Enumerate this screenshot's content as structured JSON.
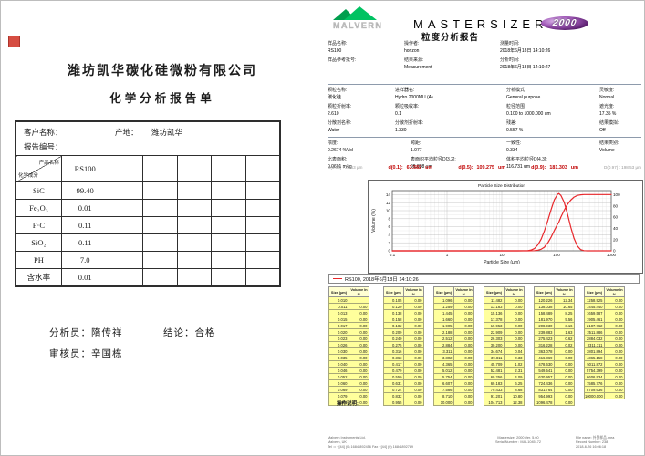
{
  "left_page": {
    "company": "潍坊凯华碳化硅微粉有限公司",
    "doc_title": "化学分析报告单",
    "table": {
      "customer_label": "客户名称：",
      "report_no_label": "报告编号：",
      "origin_label": "产地：",
      "origin_value": "潍坊凯华",
      "diag_top": "产品名称",
      "diag_bottom": "化学成分",
      "product_code": "RS100",
      "rows": [
        {
          "name": "SiC",
          "value": "99.40"
        },
        {
          "name": "Fe₂O₃",
          "value": "0.01"
        },
        {
          "name": "F·C",
          "value": "0.11"
        },
        {
          "name": "SiO₂",
          "value": "0.11"
        },
        {
          "name": "PH",
          "value": "7.0"
        },
        {
          "name": "含水率",
          "value": "0.01"
        }
      ]
    },
    "analyst_label": "分析员：",
    "analyst": "隋传祥",
    "conclusion_label": "结论：",
    "conclusion": "合格",
    "reviewer_label": "审核员：",
    "reviewer": "辛国栋"
  },
  "report": {
    "logo_text": "MALVERN",
    "brand": "MASTERSIZER",
    "brand_badge": "2000",
    "title": "粒度分析报告",
    "info1": {
      "sample_name": {
        "label": "样品名称:",
        "value": "RS100"
      },
      "sample_ref": {
        "label": "样品参考批号:",
        "value": ""
      },
      "operator": {
        "label": "操作者:",
        "value": "horizon"
      },
      "result_source": {
        "label": "结果来源:",
        "value": "Measurement"
      },
      "measured_time": {
        "label": "测量时间:",
        "value": "2018年6月18日 14:10:26"
      },
      "analysed_time": {
        "label": "分析时间:",
        "value": "2018年6月18日 14:10:27"
      }
    },
    "info2": {
      "particle_name": {
        "label": "颗粒名称:",
        "value": "碳化硅"
      },
      "particle_ri": {
        "label": "颗粒折射率:",
        "value": "2.610"
      },
      "dispersant": {
        "label": "分散剂名称:",
        "value": "Water"
      },
      "accessory": {
        "label": "进样器名:",
        "value": "Hydro 2000MU (A)"
      },
      "absorption": {
        "label": "颗粒吸收率:",
        "value": "0.1"
      },
      "dispersant_ri": {
        "label": "分散剂折射率:",
        "value": "1.330"
      },
      "analysis_model": {
        "label": "分析模式:",
        "value": "General purpose"
      },
      "size_range": {
        "label": "粒径范围:",
        "value": "0.100   to   1000.000   um"
      },
      "residual": {
        "label": "残差:",
        "value": "0.557    %"
      },
      "sensitivity": {
        "label": "灵敏度:",
        "value": "Normal"
      },
      "obscuration": {
        "label": "遮光度:",
        "value": "17.35    %"
      },
      "emulation": {
        "label": "结果模拟:",
        "value": "Off"
      }
    },
    "info3": {
      "concentration": {
        "label": "浓度:",
        "value": "0.2674    %Vol"
      },
      "ssa": {
        "label": "比表面积:",
        "value": "0.0601    m²/g"
      },
      "span": {
        "label": "跨距:",
        "value": "1.077"
      },
      "d32": {
        "label": "表面积平均粒径D[3,2]:",
        "value": "99.808    um"
      },
      "uniformity": {
        "label": "一致性:",
        "value": "0.334"
      },
      "d43": {
        "label": "体积平均粒径D[4,3]:",
        "value": "116.731    um"
      },
      "result_units": {
        "label": "结果类别:",
        "value": "Volume"
      }
    },
    "dvalues": {
      "low": "D(0.03) : 30.63 μm",
      "d10_label": "d(0.1):",
      "d10": "63.582",
      "d10_unit": "um",
      "d50_label": "d(0.5):",
      "d50": "109.275",
      "d50_unit": "um",
      "d90_label": "d(0.9):",
      "d90": "181.303",
      "d90_unit": "um",
      "high": "D(0.97) : 198.53 μm"
    },
    "ops_label": "操作说明:",
    "footer": {
      "col1": [
        "Malvern Instruments Ltd.",
        "Malvern, UK",
        "Tel := +[44] (0) 1684-892456 Fax +[44] (0) 1684-892789"
      ],
      "col2": [
        "Mastersizer 2000 Ver. 5.60",
        "Serial Number : MAL1045172"
      ],
      "col3": [
        "File name: 外贸样品.mea",
        "Record Number: 238",
        "2018-6-26 16:06:18"
      ]
    }
  },
  "chart_data": {
    "type": "line",
    "title": "Particle Size Distribution",
    "xlabel": "Particle Size (µm)",
    "ylabel_left": "Volume (%)",
    "x_scale": "log",
    "xlim": [
      0.1,
      1000
    ],
    "ylim_left": [
      0,
      15
    ],
    "ylim_right": [
      0,
      107
    ],
    "x_ticks": [
      "0.1",
      "1",
      "10",
      "100",
      "1000"
    ],
    "y_ticks_left": [
      0,
      2,
      4,
      6,
      8,
      10,
      12,
      14
    ],
    "y_ticks_right": [
      0,
      20,
      40,
      60,
      80,
      100
    ],
    "grid": true,
    "legend_text": "RS100, 2018年6月18日 14:10:26",
    "series": [
      {
        "name": "volume-frequency",
        "axis": "left",
        "color": "#e8262a",
        "points": [
          [
            0.1,
            0
          ],
          [
            20,
            0
          ],
          [
            30,
            0.05
          ],
          [
            34.7,
            0.2
          ],
          [
            39.8,
            0.6
          ],
          [
            45.7,
            1.5
          ],
          [
            52.5,
            2.9
          ],
          [
            60.3,
            5.0
          ],
          [
            69.2,
            7.5
          ],
          [
            79.4,
            10.2
          ],
          [
            91.2,
            12.7
          ],
          [
            104.7,
            14.1
          ],
          [
            110,
            14.3
          ],
          [
            120.2,
            13.8
          ],
          [
            138,
            12.1
          ],
          [
            158.5,
            9.2
          ],
          [
            182,
            5.9
          ],
          [
            208.9,
            3.1
          ],
          [
            239.9,
            1.2
          ],
          [
            275.4,
            0.3
          ],
          [
            316.2,
            0.04
          ],
          [
            363,
            0
          ],
          [
            1000,
            0
          ]
        ]
      },
      {
        "name": "cumulative-undersize",
        "axis": "right",
        "color": "#e8262a",
        "points": [
          [
            0.1,
            0
          ],
          [
            30,
            0
          ],
          [
            39.8,
            0.4
          ],
          [
            45.7,
            1.1
          ],
          [
            52.5,
            2.8
          ],
          [
            60.3,
            6.5
          ],
          [
            63.6,
            10
          ],
          [
            69.2,
            14
          ],
          [
            79.4,
            24
          ],
          [
            91.2,
            36
          ],
          [
            104.7,
            47.5
          ],
          [
            109.3,
            50
          ],
          [
            120.2,
            60
          ],
          [
            138,
            72
          ],
          [
            158.5,
            82.5
          ],
          [
            181.3,
            90
          ],
          [
            208.9,
            95.5
          ],
          [
            239.9,
            98.4
          ],
          [
            275.4,
            99.6
          ],
          [
            316.2,
            99.95
          ],
          [
            400,
            100
          ],
          [
            1000,
            100
          ]
        ]
      }
    ]
  },
  "size_table": {
    "header_size": "Size (µm)",
    "header_vol": "Volume In %",
    "columns": [
      {
        "rows": [
          [
            "0.010",
            ""
          ],
          [
            "0.011",
            "0.00"
          ],
          [
            "0.013",
            "0.00"
          ],
          [
            "0.015",
            "0.00"
          ],
          [
            "0.017",
            "0.00"
          ],
          [
            "0.020",
            "0.00"
          ],
          [
            "0.023",
            "0.00"
          ],
          [
            "0.026",
            "0.00"
          ],
          [
            "0.030",
            "0.00"
          ],
          [
            "0.035",
            "0.00"
          ],
          [
            "0.040",
            "0.00"
          ],
          [
            "0.046",
            "0.00"
          ],
          [
            "0.052",
            "0.00"
          ],
          [
            "0.060",
            "0.00"
          ],
          [
            "0.069",
            "0.00"
          ],
          [
            "0.079",
            "0.00"
          ],
          [
            "0.091",
            "0.00"
          ]
        ]
      },
      {
        "rows": [
          [
            "0.105",
            "0.00"
          ],
          [
            "0.120",
            "0.00"
          ],
          [
            "0.138",
            "0.00"
          ],
          [
            "0.158",
            "0.00"
          ],
          [
            "0.182",
            "0.00"
          ],
          [
            "0.209",
            "0.00"
          ],
          [
            "0.240",
            "0.00"
          ],
          [
            "0.275",
            "0.00"
          ],
          [
            "0.316",
            "0.00"
          ],
          [
            "0.363",
            "0.00"
          ],
          [
            "0.417",
            "0.00"
          ],
          [
            "0.479",
            "0.00"
          ],
          [
            "0.550",
            "0.00"
          ],
          [
            "0.631",
            "0.00"
          ],
          [
            "0.724",
            "0.00"
          ],
          [
            "0.832",
            "0.00"
          ],
          [
            "0.955",
            "0.00"
          ]
        ]
      },
      {
        "rows": [
          [
            "1.096",
            "0.00"
          ],
          [
            "1.259",
            "0.00"
          ],
          [
            "1.445",
            "0.00"
          ],
          [
            "1.660",
            "0.00"
          ],
          [
            "1.905",
            "0.00"
          ],
          [
            "2.188",
            "0.00"
          ],
          [
            "2.512",
            "0.00"
          ],
          [
            "2.884",
            "0.00"
          ],
          [
            "3.311",
            "0.00"
          ],
          [
            "3.802",
            "0.00"
          ],
          [
            "4.365",
            "0.00"
          ],
          [
            "5.012",
            "0.00"
          ],
          [
            "5.754",
            "0.00"
          ],
          [
            "6.607",
            "0.00"
          ],
          [
            "7.586",
            "0.00"
          ],
          [
            "8.710",
            "0.00"
          ],
          [
            "10.000",
            "0.00"
          ]
        ]
      },
      {
        "rows": [
          [
            "11.482",
            "0.00"
          ],
          [
            "13.183",
            "0.00"
          ],
          [
            "15.136",
            "0.00"
          ],
          [
            "17.378",
            "0.00"
          ],
          [
            "19.953",
            "0.00"
          ],
          [
            "22.909",
            "0.00"
          ],
          [
            "26.303",
            "0.00"
          ],
          [
            "30.200",
            "0.00"
          ],
          [
            "34.674",
            "0.04"
          ],
          [
            "39.811",
            "0.33"
          ],
          [
            "45.709",
            "1.02"
          ],
          [
            "52.481",
            "2.31"
          ],
          [
            "60.256",
            "4.09"
          ],
          [
            "69.183",
            "6.25"
          ],
          [
            "79.433",
            "8.68"
          ],
          [
            "91.201",
            "10.80"
          ],
          [
            "104.713",
            "12.38"
          ]
        ]
      },
      {
        "rows": [
          [
            "120.226",
            "12.34"
          ],
          [
            "138.038",
            "10.65"
          ],
          [
            "158.489",
            "8.25"
          ],
          [
            "181.970",
            "5.56"
          ],
          [
            "208.930",
            "3.16"
          ],
          [
            "239.883",
            "1.63"
          ],
          [
            "275.423",
            "0.62"
          ],
          [
            "316.228",
            "0.02"
          ],
          [
            "363.078",
            "0.00"
          ],
          [
            "416.869",
            "0.00"
          ],
          [
            "478.630",
            "0.00"
          ],
          [
            "549.541",
            "0.00"
          ],
          [
            "630.957",
            "0.00"
          ],
          [
            "724.436",
            "0.00"
          ],
          [
            "831.764",
            "0.00"
          ],
          [
            "954.993",
            "0.00"
          ],
          [
            "1096.478",
            "0.00"
          ]
        ]
      },
      {
        "rows": [
          [
            "1258.925",
            "0.00"
          ],
          [
            "1445.440",
            "0.00"
          ],
          [
            "1659.587",
            "0.00"
          ],
          [
            "1905.461",
            "0.00"
          ],
          [
            "2187.762",
            "0.00"
          ],
          [
            "2511.886",
            "0.00"
          ],
          [
            "2884.032",
            "0.00"
          ],
          [
            "3311.311",
            "0.00"
          ],
          [
            "3801.894",
            "0.00"
          ],
          [
            "4365.158",
            "0.00"
          ],
          [
            "5011.872",
            "0.00"
          ],
          [
            "5754.399",
            "0.00"
          ],
          [
            "6606.934",
            "0.00"
          ],
          [
            "7585.776",
            "0.00"
          ],
          [
            "8709.636",
            "0.00"
          ],
          [
            "10000.000",
            "0.00"
          ]
        ]
      }
    ]
  }
}
